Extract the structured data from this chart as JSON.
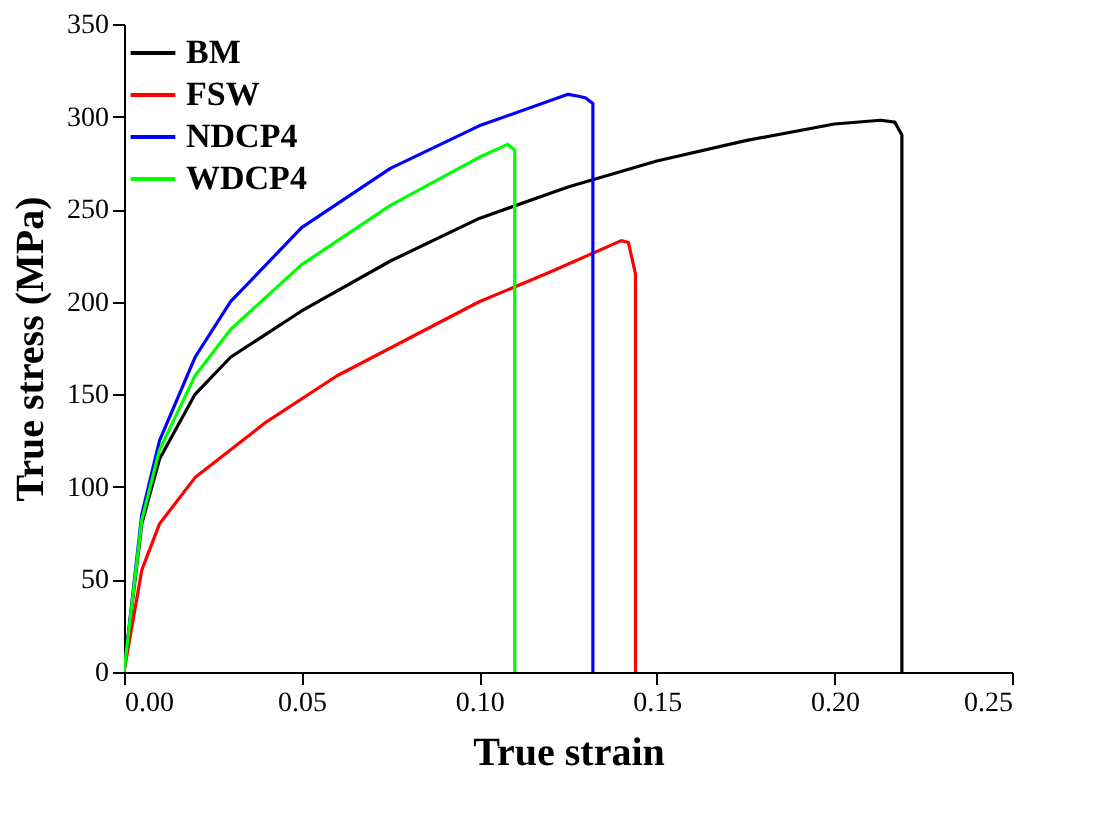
{
  "chart_data": {
    "type": "line",
    "xlabel": "True strain",
    "ylabel": "True stress (MPa)",
    "xlim": [
      0,
      0.25
    ],
    "xticks": [
      {
        "value": 0,
        "label": "0.00"
      },
      0.05,
      {
        "value": 0.1,
        "label": "0.10"
      },
      0.15,
      {
        "value": 0.2,
        "label": "0.20"
      },
      0.25
    ],
    "ylim": [
      0,
      350
    ],
    "yticks": [
      0,
      50,
      100,
      150,
      200,
      250,
      300,
      350
    ],
    "grid": false,
    "legend": "top left",
    "marker": "none",
    "line_style": "solid",
    "series": [
      {
        "name": "BM",
        "color": "#000000",
        "x": [
          0,
          0.005,
          0.01,
          0.02,
          0.03,
          0.05,
          0.075,
          0.1,
          0.125,
          0.15,
          0.175,
          0.2,
          0.213,
          0.217,
          0.219,
          0.219
        ],
        "values": [
          0,
          80,
          115,
          150,
          170,
          195,
          222,
          245,
          262,
          276,
          287,
          296,
          298,
          297,
          290,
          0
        ]
      },
      {
        "name": "FSW",
        "color": "#ff0000",
        "x": [
          0,
          0.005,
          0.01,
          0.02,
          0.04,
          0.06,
          0.08,
          0.1,
          0.12,
          0.14,
          0.142,
          0.144,
          0.144
        ],
        "values": [
          0,
          55,
          80,
          105,
          135,
          160,
          180,
          200,
          216,
          233,
          232,
          215,
          0
        ]
      },
      {
        "name": "NDCP4",
        "color": "#0000ff",
        "x": [
          0,
          0.005,
          0.01,
          0.02,
          0.03,
          0.05,
          0.075,
          0.1,
          0.125,
          0.128,
          0.13,
          0.132,
          0.132
        ],
        "values": [
          0,
          85,
          125,
          170,
          200,
          240,
          272,
          295,
          312,
          311,
          310,
          307,
          0
        ]
      },
      {
        "name": "WDCP4",
        "color": "#00ff00",
        "x": [
          0,
          0.005,
          0.01,
          0.02,
          0.03,
          0.05,
          0.075,
          0.1,
          0.108,
          0.11,
          0.11
        ],
        "values": [
          0,
          82,
          120,
          160,
          185,
          220,
          252,
          278,
          285,
          282,
          0
        ]
      }
    ]
  }
}
